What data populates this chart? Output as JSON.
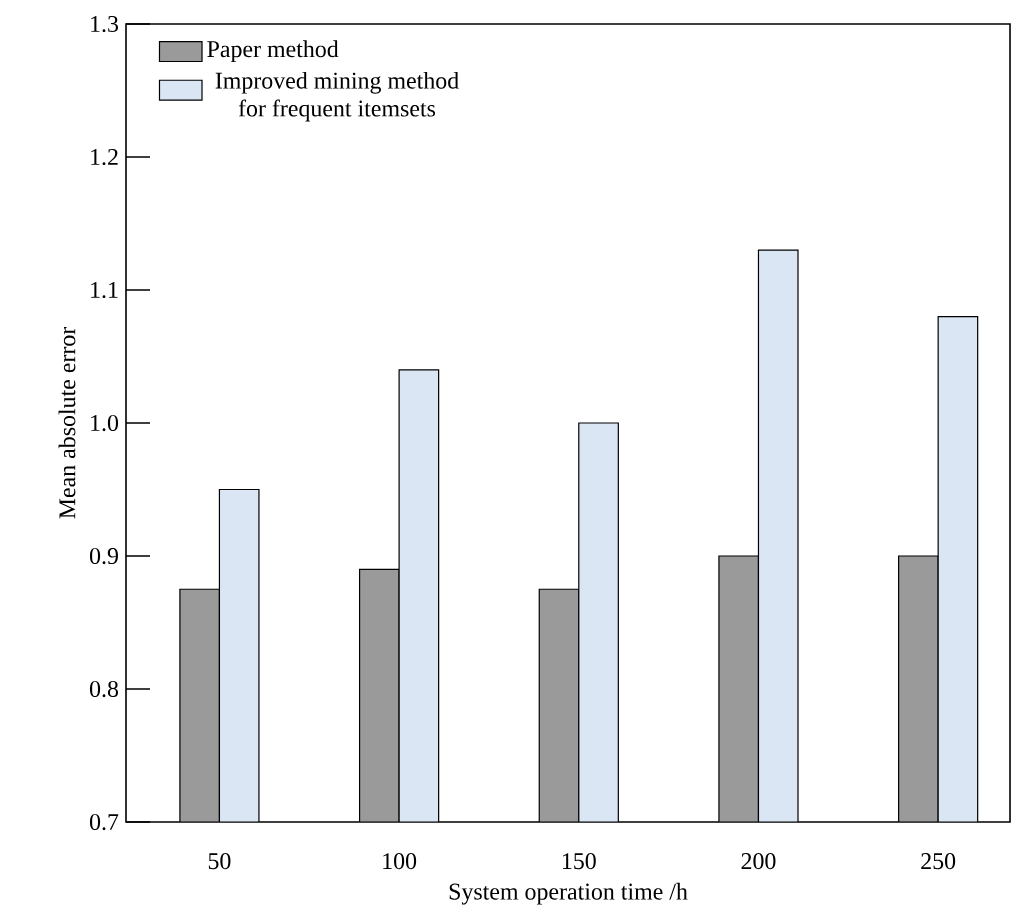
{
  "chart_data": {
    "type": "bar",
    "xlabel": "System operation time /h",
    "ylabel": "Mean absolute error",
    "categories": [
      "50",
      "100",
      "150",
      "200",
      "250"
    ],
    "series": [
      {
        "name": "Paper method",
        "color": "#9a9a9a",
        "values": [
          0.875,
          0.89,
          0.875,
          0.9,
          0.9
        ]
      },
      {
        "name": "Improved mining method for frequent itemsets",
        "color": "#dbe6f5",
        "values": [
          0.95,
          1.04,
          1.0,
          1.13,
          1.08
        ]
      }
    ],
    "ylim": [
      0.7,
      1.3
    ],
    "yticks": [
      0.7,
      0.8,
      0.9,
      {
        "value": 1.0,
        "label": "1.0"
      },
      1.1,
      1.2,
      1.3
    ],
    "legend": "top left"
  }
}
